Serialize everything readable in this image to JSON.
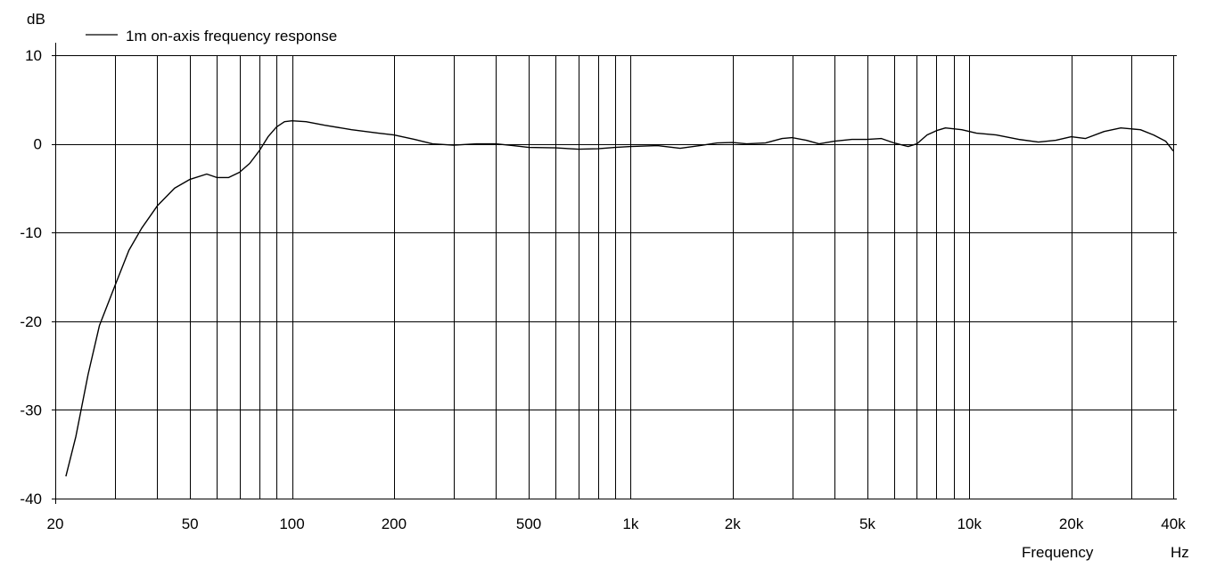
{
  "chart_data": {
    "type": "line",
    "title": "",
    "ylabel": "dB",
    "xlabel": "Frequency",
    "xunit": "Hz",
    "xscale": "log",
    "xlim": [
      20,
      40000
    ],
    "ylim": [
      -40,
      10
    ],
    "grid": true,
    "legend_position": "top-left",
    "colors": {
      "line": "#000000",
      "grid": "#000000",
      "background": "#ffffff"
    },
    "y_ticks": [
      {
        "value": 10,
        "label": "10"
      },
      {
        "value": 0,
        "label": "0"
      },
      {
        "value": -10,
        "label": "-10"
      },
      {
        "value": -20,
        "label": "-20"
      },
      {
        "value": -30,
        "label": "-30"
      },
      {
        "value": -40,
        "label": "-40"
      }
    ],
    "x_ticks": [
      {
        "value": 20,
        "label": "20"
      },
      {
        "value": 50,
        "label": "50"
      },
      {
        "value": 100,
        "label": "100"
      },
      {
        "value": 200,
        "label": "200"
      },
      {
        "value": 500,
        "label": "500"
      },
      {
        "value": 1000,
        "label": "1k"
      },
      {
        "value": 2000,
        "label": "2k"
      },
      {
        "value": 5000,
        "label": "5k"
      },
      {
        "value": 10000,
        "label": "10k"
      },
      {
        "value": 20000,
        "label": "20k"
      },
      {
        "value": 40000,
        "label": "40k"
      }
    ],
    "x_gridlines": [
      30,
      40,
      50,
      60,
      70,
      80,
      90,
      100,
      200,
      300,
      400,
      500,
      600,
      700,
      800,
      900,
      1000,
      2000,
      3000,
      4000,
      5000,
      6000,
      7000,
      8000,
      9000,
      10000,
      20000,
      30000,
      40000
    ],
    "y_gridlines": [
      10,
      0,
      -10,
      -20,
      -30
    ],
    "series": [
      {
        "name": "1m on-axis frequency response",
        "points": [
          [
            21.5,
            -37.5
          ],
          [
            23,
            -33
          ],
          [
            25,
            -26
          ],
          [
            27,
            -20.5
          ],
          [
            30,
            -16
          ],
          [
            33,
            -12
          ],
          [
            36,
            -9.5
          ],
          [
            40,
            -7
          ],
          [
            45,
            -5
          ],
          [
            50,
            -4
          ],
          [
            56,
            -3.4
          ],
          [
            60,
            -3.8
          ],
          [
            65,
            -3.8
          ],
          [
            70,
            -3.2
          ],
          [
            75,
            -2.2
          ],
          [
            80,
            -0.8
          ],
          [
            85,
            0.8
          ],
          [
            90,
            1.9
          ],
          [
            95,
            2.5
          ],
          [
            100,
            2.6
          ],
          [
            110,
            2.5
          ],
          [
            125,
            2.1
          ],
          [
            150,
            1.6
          ],
          [
            180,
            1.2
          ],
          [
            200,
            1.0
          ],
          [
            230,
            0.5
          ],
          [
            260,
            0.0
          ],
          [
            300,
            -0.15
          ],
          [
            350,
            0.0
          ],
          [
            400,
            0.0
          ],
          [
            450,
            -0.2
          ],
          [
            500,
            -0.4
          ],
          [
            600,
            -0.45
          ],
          [
            700,
            -0.6
          ],
          [
            800,
            -0.55
          ],
          [
            900,
            -0.4
          ],
          [
            1000,
            -0.3
          ],
          [
            1200,
            -0.2
          ],
          [
            1400,
            -0.5
          ],
          [
            1600,
            -0.2
          ],
          [
            1800,
            0.1
          ],
          [
            2000,
            0.15
          ],
          [
            2200,
            0.0
          ],
          [
            2500,
            0.1
          ],
          [
            2800,
            0.6
          ],
          [
            3000,
            0.7
          ],
          [
            3300,
            0.4
          ],
          [
            3600,
            0.0
          ],
          [
            4000,
            0.3
          ],
          [
            4500,
            0.5
          ],
          [
            5000,
            0.5
          ],
          [
            5500,
            0.6
          ],
          [
            6000,
            0.1
          ],
          [
            6600,
            -0.3
          ],
          [
            7000,
            0.0
          ],
          [
            7500,
            1.0
          ],
          [
            8000,
            1.5
          ],
          [
            8500,
            1.8
          ],
          [
            9500,
            1.6
          ],
          [
            10500,
            1.2
          ],
          [
            12000,
            1.0
          ],
          [
            14000,
            0.5
          ],
          [
            16000,
            0.2
          ],
          [
            18000,
            0.4
          ],
          [
            20000,
            0.8
          ],
          [
            22000,
            0.6
          ],
          [
            25000,
            1.4
          ],
          [
            28000,
            1.8
          ],
          [
            32000,
            1.6
          ],
          [
            35000,
            1.0
          ],
          [
            38000,
            0.3
          ],
          [
            40000,
            -0.8
          ]
        ]
      }
    ]
  }
}
